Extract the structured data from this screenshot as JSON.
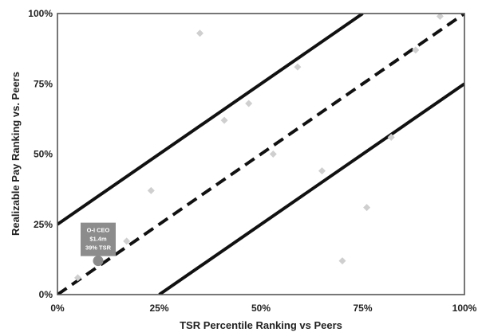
{
  "chart_data": {
    "type": "scatter",
    "xlabel": "TSR Percentile Ranking vs Peers",
    "ylabel": "Realizable Pay Ranking vs. Peers",
    "xlim": [
      0,
      100
    ],
    "ylim": [
      0,
      100
    ],
    "grid": false,
    "x_ticks": [
      "0%",
      "25%",
      "50%",
      "75%",
      "100%"
    ],
    "y_ticks": [
      "0%",
      "25%",
      "50%",
      "75%",
      "100%"
    ],
    "colors": {
      "peer_marker": "#cfcfcf",
      "highlight_marker": "#8a8a8a",
      "reference_line": "#111111",
      "callout_background": "#8c8c8c"
    },
    "series": [
      {
        "points": [
          {
            "x": 5,
            "y": 6
          },
          {
            "x": 17,
            "y": 19
          },
          {
            "x": 23,
            "y": 37
          },
          {
            "x": 35,
            "y": 93
          },
          {
            "x": 41,
            "y": 62
          },
          {
            "x": 47,
            "y": 68
          },
          {
            "x": 53,
            "y": 50
          },
          {
            "x": 59,
            "y": 81
          },
          {
            "x": 65,
            "y": 44
          },
          {
            "x": 70,
            "y": 12
          },
          {
            "x": 76,
            "y": 31
          },
          {
            "x": 82,
            "y": 56
          },
          {
            "x": 88,
            "y": 87
          },
          {
            "x": 94,
            "y": 99
          }
        ]
      },
      {
        "points": [
          {
            "x": 10,
            "y": 12
          }
        ]
      }
    ],
    "reference_lines": [
      {
        "style": "solid",
        "from": [
          0,
          25
        ],
        "to": [
          75,
          100
        ]
      },
      {
        "style": "dashed",
        "from": [
          0,
          0
        ],
        "to": [
          100,
          100
        ]
      },
      {
        "style": "solid",
        "from": [
          25,
          0
        ],
        "to": [
          100,
          75
        ]
      }
    ],
    "annotations": [
      {
        "lines": [
          "O-I CEO",
          "$1.4m",
          "39% TSR"
        ]
      }
    ]
  }
}
